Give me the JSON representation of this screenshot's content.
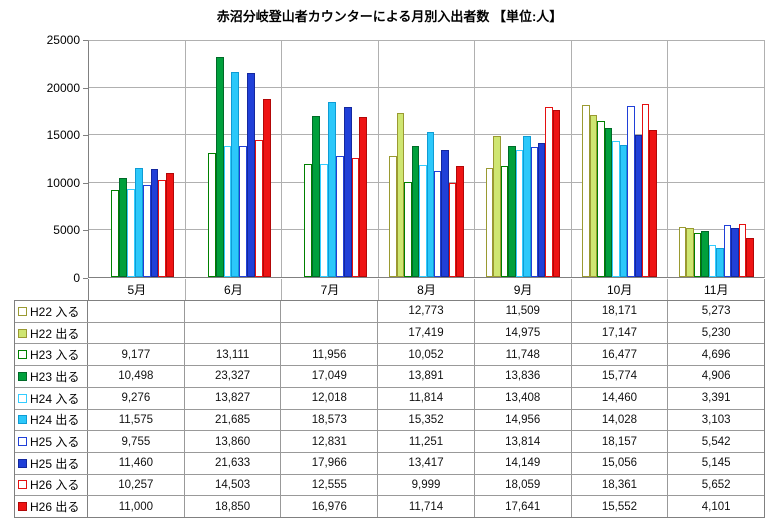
{
  "title": "赤沼分岐登山者カウンターによる月別入出者数 【単位:人】",
  "chart_data": {
    "type": "bar",
    "title": "赤沼分岐登山者カウンターによる月別入出者数 【単位:人】",
    "unit": "人",
    "categories": [
      "5月",
      "6月",
      "7月",
      "8月",
      "9月",
      "10月",
      "11月"
    ],
    "ylim": [
      0,
      25000
    ],
    "ytick_step": 5000,
    "yticks": [
      0,
      5000,
      10000,
      15000,
      20000,
      25000
    ],
    "ytick_labels": [
      "0",
      "5000",
      "10000",
      "15000",
      "20000",
      "25000"
    ],
    "grid": "horizontal-and-category-separators",
    "legend_position": "table-left-column",
    "series": [
      {
        "name": "H22 入る",
        "style": "outline",
        "fill": "#ffffff",
        "border": "#9a9a32",
        "values": [
          null,
          null,
          null,
          12773,
          11509,
          18171,
          5273
        ],
        "display": [
          "",
          "",
          "",
          "12,773",
          "11,509",
          "18,171",
          "5,273"
        ]
      },
      {
        "name": "H22 出る",
        "style": "filled",
        "fill": "#cfe672",
        "border": "#9a9a32",
        "values": [
          null,
          null,
          null,
          17419,
          14975,
          17147,
          5230
        ],
        "display": [
          "",
          "",
          "",
          "17,419",
          "14,975",
          "17,147",
          "5,230"
        ]
      },
      {
        "name": "H23 入る",
        "style": "outline",
        "fill": "#ffffff",
        "border": "#008000",
        "values": [
          9177,
          13111,
          11956,
          10052,
          11748,
          16477,
          4696
        ],
        "display": [
          "9,177",
          "13,111",
          "11,956",
          "10,052",
          "11,748",
          "16,477",
          "4,696"
        ]
      },
      {
        "name": "H23 出る",
        "style": "filled",
        "fill": "#00a03c",
        "border": "#006a28",
        "values": [
          10498,
          23327,
          17049,
          13891,
          13836,
          15774,
          4906
        ],
        "display": [
          "10,498",
          "23,327",
          "17,049",
          "13,891",
          "13,836",
          "15,774",
          "4,906"
        ]
      },
      {
        "name": "H24 入る",
        "style": "outline",
        "fill": "#ffffff",
        "border": "#33ccff",
        "values": [
          9276,
          13827,
          12018,
          11814,
          13408,
          14460,
          3391
        ],
        "display": [
          "9,276",
          "13,827",
          "12,018",
          "11,814",
          "13,408",
          "14,460",
          "3,391"
        ]
      },
      {
        "name": "H24 出る",
        "style": "filled",
        "fill": "#2cc8fa",
        "border": "#0f9cd4",
        "values": [
          11575,
          21685,
          18573,
          15352,
          14956,
          14028,
          3103
        ],
        "display": [
          "11,575",
          "21,685",
          "18,573",
          "15,352",
          "14,956",
          "14,028",
          "3,103"
        ]
      },
      {
        "name": "H25 入る",
        "style": "outline",
        "fill": "#ffffff",
        "border": "#2040d8",
        "values": [
          9755,
          13860,
          12831,
          11251,
          13814,
          18157,
          5542
        ],
        "display": [
          "9,755",
          "13,860",
          "12,831",
          "11,251",
          "13,814",
          "18,157",
          "5,542"
        ]
      },
      {
        "name": "H25 出る",
        "style": "filled",
        "fill": "#2040d8",
        "border": "#14289e",
        "values": [
          11460,
          21633,
          17966,
          13417,
          14149,
          15056,
          5145
        ],
        "display": [
          "11,460",
          "21,633",
          "17,966",
          "13,417",
          "14,149",
          "15,056",
          "5,145"
        ]
      },
      {
        "name": "H26 入る",
        "style": "outline",
        "fill": "#ffffff",
        "border": "#e51010",
        "values": [
          10257,
          14503,
          12555,
          9999,
          18059,
          18361,
          5652
        ],
        "display": [
          "10,257",
          "14,503",
          "12,555",
          "9,999",
          "18,059",
          "18,361",
          "5,652"
        ]
      },
      {
        "name": "H26 出る",
        "style": "filled",
        "fill": "#ee1414",
        "border": "#b20808",
        "values": [
          11000,
          18850,
          16976,
          11714,
          17641,
          15552,
          4101
        ],
        "display": [
          "11,000",
          "18,850",
          "16,976",
          "11,714",
          "17,641",
          "15,552",
          "4,101"
        ]
      }
    ]
  },
  "colors": {
    "gridline": "#b0b0b0",
    "axis": "#808080",
    "table_border": "#999999",
    "text": "#000000",
    "background": "#ffffff"
  }
}
